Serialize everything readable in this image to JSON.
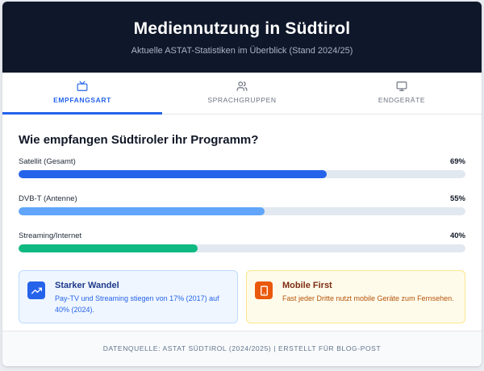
{
  "header": {
    "title": "Mediennutzung in Südtirol",
    "subtitle": "Aktuelle ASTAT-Statistiken im Überblick (Stand 2024/25)"
  },
  "tabs": [
    {
      "label": "EMPFANGSART",
      "icon": "tv-icon",
      "active": true
    },
    {
      "label": "SPRACHGRUPPEN",
      "icon": "users-icon",
      "active": false
    },
    {
      "label": "ENDGERÄTE",
      "icon": "monitor-icon",
      "active": false
    }
  ],
  "main": {
    "question": "Wie empfangen Südtiroler ihr Programm?",
    "stats": [
      {
        "label": "Satellit (Gesamt)",
        "value_label": "69%",
        "percent": 69,
        "color": "#2563eb"
      },
      {
        "label": "DVB-T (Antenne)",
        "value_label": "55%",
        "percent": 55,
        "color": "#60a5fa"
      },
      {
        "label": "Streaming/Internet",
        "value_label": "40%",
        "percent": 40,
        "color": "#10b981"
      }
    ],
    "cards": [
      {
        "title": "Starker Wandel",
        "text": "Pay-TV und Streaming stiegen von 17% (2017) auf 40% (2024).",
        "icon": "trending-up-icon",
        "accent": "#2563eb"
      },
      {
        "title": "Mobile First",
        "text": "Fast jeder Dritte nutzt mobile Geräte zum Fernsehen.",
        "icon": "smartphone-icon",
        "accent": "#ea580c"
      }
    ]
  },
  "footer": {
    "text": "DATENQUELLE: ASTAT SÜDTIROL (2024/2025) | ERSTELLT FÜR BLOG-POST"
  }
}
